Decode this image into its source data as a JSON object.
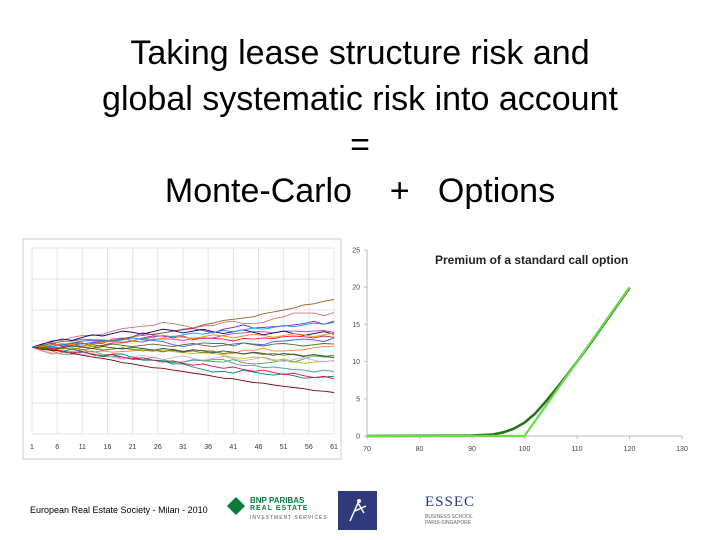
{
  "slide": {
    "title_lines": [
      "Taking lease structure risk and",
      "global systematic risk into account",
      "=",
      "Monte-Carlo    +   Options"
    ],
    "footer_text": "European Real Estate Society - Milan - 2010"
  },
  "logos": {
    "bnp": {
      "line1": "BNP PARIBAS",
      "line2": "REAL ESTATE",
      "line3": "INVESTMENT SERVICES"
    },
    "essec": {
      "name": "ESSEC",
      "sub": "BUSINESS SCHOOL PARIS-SINGAPORE"
    }
  },
  "chart_data": [
    {
      "type": "line",
      "title": "",
      "description_kind": "monte-carlo simulated paths",
      "x_tick_labels": [
        "1",
        "6",
        "11",
        "16",
        "21",
        "26",
        "31",
        "36",
        "41",
        "46",
        "51",
        "56",
        "61"
      ],
      "xlim": [
        1,
        61
      ],
      "ylim": [
        0,
        30
      ],
      "grid": true,
      "legend": "none",
      "series_colors": [
        "#e6194b",
        "#3cb44b",
        "#4363d8",
        "#f58231",
        "#911eb4",
        "#46a0a0",
        "#c83cb4",
        "#a0c814",
        "#c87878",
        "#008080",
        "#9a6324",
        "#800000",
        "#556b2f",
        "#808000",
        "#000075",
        "#e6a0e6",
        "#ff8c00",
        "#2f4f4f",
        "#1e90ff",
        "#dc143c",
        "#32cd32",
        "#8b008b",
        "#b8860b",
        "#4682b4",
        "#d2691e",
        "#6a5acd",
        "#20b2aa",
        "#cd5c5c",
        "#708090",
        "#9acd32"
      ],
      "series": [
        {
          "values": [
            14.0,
            13.9,
            14.4,
            14.4,
            14.7,
            14.7,
            14.1,
            14.3,
            14.7,
            14.7,
            15.0,
            15.5,
            15.8,
            15.8,
            15.5,
            15.8,
            15.2,
            15.5,
            15.4,
            15.3,
            15.0,
            15.4,
            15.3,
            15.5,
            15.4,
            15.7,
            15.8,
            15.7,
            15.5,
            15.8,
            15.6
          ]
        },
        {
          "values": [
            14.0,
            13.8,
            13.4,
            12.8,
            12.9,
            13.2,
            13.4,
            12.8,
            12.8,
            12.1,
            12.5,
            12.0,
            12.4,
            12.0,
            11.6,
            11.6,
            12.0,
            11.8,
            11.7,
            11.6,
            12.0,
            11.5,
            11.3,
            11.4,
            11.6,
            11.9,
            11.6,
            12.1,
            12.6,
            12.4,
            12.4
          ]
        },
        {
          "values": [
            14.0,
            13.8,
            14.4,
            14.3,
            14.7,
            15.0,
            15.1,
            15.1,
            15.1,
            15.3,
            15.5,
            15.2,
            15.1,
            14.9,
            14.4,
            14.1,
            14.4,
            14.7,
            14.6,
            14.6,
            14.2,
            14.7,
            14.5,
            14.4,
            14.9,
            15.0,
            15.2,
            15.3,
            15.2,
            14.9,
            15.5
          ]
        },
        {
          "values": [
            14.0,
            13.4,
            12.9,
            13.1,
            13.3,
            13.6,
            13.2,
            13.4,
            13.2,
            13.3,
            13.4,
            13.8,
            13.6,
            13.2,
            13.7,
            13.3,
            13.5,
            13.5,
            13.4,
            12.9,
            13.0,
            13.5,
            13.5,
            13.8,
            13.4,
            13.4,
            13.5,
            13.6,
            13.9,
            14.1,
            14.1
          ]
        },
        {
          "values": [
            14.0,
            14.2,
            14.7,
            14.1,
            14.4,
            14.1,
            14.7,
            14.9,
            15.1,
            15.3,
            15.7,
            16.3,
            16.0,
            16.3,
            16.6,
            16.8,
            17.0,
            16.7,
            16.3,
            16.9,
            17.2,
            17.6,
            17.1,
            17.2,
            17.3,
            17.4,
            17.6,
            17.8,
            18.2,
            17.7,
            18.2
          ]
        },
        {
          "values": [
            14.0,
            14.3,
            13.8,
            13.2,
            13.1,
            13.2,
            12.8,
            12.5,
            12.5,
            12.4,
            12.0,
            12.0,
            11.9,
            11.8,
            11.5,
            11.6,
            11.9,
            11.8,
            12.0,
            12.0,
            11.4,
            11.0,
            11.1,
            10.7,
            10.8,
            10.6,
            10.4,
            10.3,
            10.0,
            10.3,
            10.1
          ]
        },
        {
          "values": [
            14.0,
            14.1,
            14.0,
            13.9,
            14.6,
            14.1,
            14.6,
            14.6,
            15.3,
            15.5,
            15.0,
            14.8,
            15.3,
            15.3,
            15.3,
            15.1,
            15.4,
            15.4,
            15.5,
            15.9,
            16.2,
            16.3,
            16.5,
            16.5,
            16.3,
            16.6,
            16.6,
            16.5,
            16.6,
            16.7,
            16.4
          ]
        },
        {
          "values": [
            14.0,
            13.9,
            13.5,
            13.9,
            13.6,
            14.0,
            14.1,
            13.6,
            13.7,
            13.9,
            13.7,
            13.6,
            13.3,
            13.6,
            13.3,
            13.1,
            13.0,
            13.1,
            13.0,
            12.7,
            12.3,
            12.2,
            12.4,
            12.3,
            11.8,
            12.1,
            11.7,
            11.4,
            11.6,
            11.7,
            11.8
          ]
        },
        {
          "values": [
            14.0,
            14.4,
            15.1,
            15.1,
            15.6,
            15.9,
            15.9,
            16.1,
            16.6,
            17.0,
            17.2,
            17.4,
            17.5,
            18.0,
            17.8,
            17.5,
            17.1,
            17.4,
            17.5,
            18.0,
            18.2,
            17.8,
            17.8,
            18.0,
            18.6,
            18.9,
            19.5,
            19.5,
            19.5,
            19.1,
            19.6
          ]
        },
        {
          "values": [
            14.0,
            13.6,
            13.6,
            13.3,
            13.7,
            13.3,
            12.8,
            12.5,
            12.9,
            12.9,
            12.3,
            11.9,
            11.9,
            11.8,
            11.3,
            11.3,
            10.8,
            10.4,
            10.0,
            10.1,
            9.8,
            10.3,
            10.0,
            9.7,
            9.5,
            9.7,
            9.4,
            9.0,
            9.1,
            9.2,
            9.3
          ]
        },
        {
          "values": [
            14.0,
            14.3,
            14.6,
            14.9,
            15.0,
            15.3,
            15.2,
            15.2,
            15.0,
            15.4,
            15.7,
            15.9,
            16.1,
            16.3,
            16.6,
            16.9,
            17.1,
            17.6,
            17.9,
            18.3,
            18.5,
            18.7,
            18.9,
            19.4,
            19.7,
            20.0,
            20.3,
            20.8,
            21.0,
            21.4,
            21.7
          ]
        },
        {
          "values": [
            14.0,
            13.7,
            13.5,
            13.4,
            13.0,
            12.7,
            12.4,
            12.2,
            11.9,
            11.5,
            11.3,
            11.0,
            10.7,
            10.6,
            10.3,
            10.1,
            9.8,
            9.6,
            9.3,
            9.0,
            8.9,
            8.6,
            8.3,
            8.2,
            7.9,
            7.7,
            7.5,
            7.3,
            7.0,
            6.9,
            6.7
          ]
        },
        {
          "values": [
            14.0,
            14.2,
            14.1,
            14.4,
            14.3,
            14.6,
            14.4,
            14.2,
            14.5,
            14.3,
            14.1,
            14.3,
            14.5,
            14.3,
            14.1,
            14.4,
            14.6,
            14.3,
            14.1,
            14.3,
            14.5,
            14.7,
            14.4,
            14.2,
            14.5,
            14.6,
            14.4,
            14.2,
            14.4,
            14.6,
            14.5
          ]
        },
        {
          "values": [
            14.0,
            13.8,
            14.0,
            13.7,
            13.9,
            13.6,
            13.8,
            13.5,
            13.7,
            13.9,
            13.6,
            13.4,
            13.6,
            13.3,
            13.5,
            13.2,
            13.4,
            13.1,
            13.3,
            13.0,
            13.2,
            12.9,
            13.1,
            12.8,
            13.0,
            12.7,
            12.9,
            12.6,
            12.8,
            12.5,
            12.7
          ]
        },
        {
          "values": [
            14.0,
            14.5,
            14.9,
            15.3,
            15.1,
            15.6,
            16.0,
            15.8,
            16.2,
            16.6,
            16.4,
            16.1,
            16.5,
            16.9,
            16.7,
            16.3,
            16.6,
            16.9,
            16.5,
            16.2,
            16.5,
            16.8,
            16.4,
            16.0,
            16.3,
            16.6,
            16.2,
            15.9,
            16.2,
            16.5,
            16.1
          ]
        },
        {
          "values": [
            14.0,
            13.5,
            13.1,
            12.8,
            13.2,
            12.9,
            12.5,
            12.8,
            12.4,
            12.1,
            12.4,
            12.7,
            12.3,
            12.0,
            12.3,
            12.6,
            12.2,
            11.9,
            12.2,
            12.5,
            12.1,
            11.8,
            12.1,
            12.4,
            12.0,
            11.7,
            12.0,
            12.3,
            11.9,
            11.6,
            11.9
          ]
        },
        {
          "values": [
            14.0,
            14.1,
            14.3,
            14.6,
            14.4,
            14.2,
            14.5,
            14.8,
            15.0,
            14.8,
            15.1,
            15.4,
            15.2,
            15.5,
            15.8,
            15.6,
            15.4,
            15.7,
            16.0,
            15.8,
            15.5,
            15.8,
            16.1,
            15.9,
            15.6,
            15.9,
            16.2,
            16.0,
            15.7,
            16.0,
            16.3
          ]
        },
        {
          "values": [
            14.0,
            13.9,
            13.7,
            13.9,
            14.2,
            14.0,
            13.8,
            14.1,
            13.9,
            13.7,
            14.0,
            13.8,
            13.5,
            13.8,
            13.6,
            13.3,
            13.6,
            13.4,
            13.1,
            13.4,
            13.2,
            12.9,
            13.2,
            13.0,
            12.7,
            13.0,
            12.8,
            12.5,
            12.8,
            12.6,
            12.3
          ]
        },
        {
          "values": [
            14.0,
            14.3,
            14.1,
            14.4,
            14.7,
            14.5,
            14.8,
            15.1,
            14.9,
            15.2,
            15.5,
            15.3,
            15.6,
            15.9,
            15.7,
            16.0,
            16.3,
            16.1,
            16.4,
            16.7,
            16.5,
            16.8,
            17.1,
            16.9,
            17.2,
            17.5,
            17.3,
            17.6,
            17.9,
            17.7,
            18.0
          ]
        },
        {
          "values": [
            14.0,
            13.6,
            13.8,
            13.4,
            13.1,
            13.3,
            12.9,
            12.6,
            12.8,
            12.4,
            12.1,
            12.3,
            11.9,
            11.6,
            11.8,
            11.4,
            11.1,
            11.3,
            10.9,
            10.6,
            10.8,
            10.4,
            10.1,
            10.3,
            9.9,
            9.6,
            9.8,
            9.4,
            9.1,
            9.3,
            8.9
          ]
        }
      ]
    },
    {
      "type": "line",
      "title": "Premium of a standard call option",
      "xlim": [
        70,
        130
      ],
      "ylim": [
        0,
        25
      ],
      "x_ticks": [
        70,
        80,
        90,
        100,
        110,
        120,
        130
      ],
      "y_ticks": [
        0,
        5,
        10,
        15,
        20,
        25
      ],
      "grid": false,
      "legend": "none",
      "series": [
        {
          "color": "#2a6e1f",
          "x": [
            70,
            90,
            94,
            96,
            98,
            100,
            102,
            104,
            106,
            108,
            110,
            112,
            114,
            116,
            118,
            120
          ],
          "y": [
            0,
            0.05,
            0.2,
            0.5,
            1.0,
            1.8,
            3.0,
            4.6,
            6.3,
            8.1,
            10.0,
            11.9,
            13.9,
            15.9,
            17.9,
            19.9
          ]
        },
        {
          "color": "#66dd44",
          "x": [
            70,
            100,
            120
          ],
          "y": [
            0,
            0,
            20
          ]
        }
      ]
    }
  ]
}
